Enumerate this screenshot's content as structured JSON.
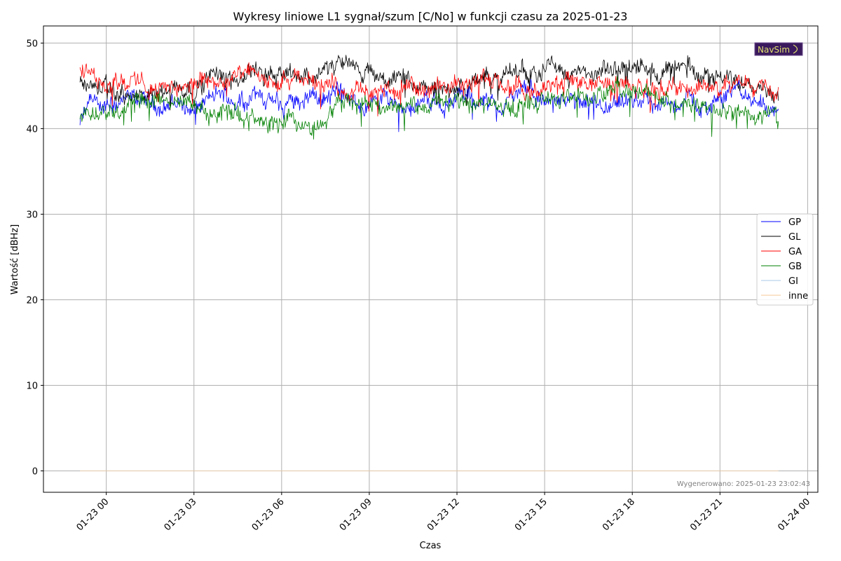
{
  "chart_data": {
    "type": "line",
    "title": "Wykresy liniowe L1 sygnał/szum [C/No] w funkcji czasu za 2025-01-23",
    "xlabel": "Czas",
    "ylabel": "Wartość [dBHz]",
    "x_ticks": [
      "01-23 00",
      "01-23 03",
      "01-23 06",
      "01-23 09",
      "01-23 12",
      "01-23 15",
      "01-23 18",
      "01-23 21",
      "01-24 00"
    ],
    "y_ticks": [
      "0",
      "10",
      "20",
      "30",
      "40",
      "50"
    ],
    "xlim_hours": [
      -2.15,
      24.35
    ],
    "ylim": [
      -2.5,
      52
    ],
    "grid": true,
    "legend_position": "center-right",
    "series": [
      {
        "name": "GP",
        "color": "#0000ff",
        "x_hours": [
          -0.9,
          -0.5,
          0,
          0.5,
          1,
          1.5,
          2,
          2.5,
          3,
          3.5,
          4,
          4.5,
          5,
          5.5,
          6,
          6.5,
          7,
          7.5,
          8,
          8.5,
          9,
          9.5,
          10,
          10.5,
          11,
          11.5,
          12,
          12.5,
          13,
          13.5,
          14,
          14.5,
          15,
          15.5,
          16,
          16.5,
          17,
          17.5,
          18,
          18.5,
          19,
          19.5,
          20,
          20.5,
          21,
          21.5,
          22,
          22.5,
          23.0
        ],
        "values": [
          40.5,
          43.5,
          42.5,
          43.0,
          43.5,
          43.0,
          42.5,
          43.2,
          42.0,
          43.5,
          44.0,
          43.0,
          44.0,
          43.5,
          42.5,
          43.5,
          44.0,
          43.5,
          44.5,
          43.0,
          42.5,
          44.0,
          43.0,
          42.5,
          43.5,
          42.5,
          44.0,
          43.5,
          43.0,
          42.5,
          44.0,
          44.5,
          43.0,
          43.5,
          43.0,
          42.5,
          42.0,
          42.5,
          43.0,
          43.5,
          42.5,
          43.0,
          43.5,
          42.0,
          44.0,
          44.5,
          43.5,
          43.0,
          42.0
        ]
      },
      {
        "name": "GL",
        "color": "#000000",
        "x_hours": [
          -0.9,
          -0.5,
          0,
          0.5,
          1,
          1.5,
          2,
          2.5,
          3,
          3.5,
          4,
          4.5,
          5,
          5.5,
          6,
          6.5,
          7,
          7.5,
          8,
          8.5,
          9,
          9.5,
          10,
          10.5,
          11,
          11.5,
          12,
          12.5,
          13,
          13.5,
          14,
          14.5,
          15,
          15.5,
          16,
          16.5,
          17,
          17.5,
          18,
          18.5,
          19,
          19.5,
          20,
          20.5,
          21,
          21.5,
          22,
          22.5,
          23.0
        ],
        "values": [
          45.5,
          45.0,
          44.5,
          44.0,
          43.5,
          43.5,
          44.5,
          45.0,
          44.5,
          46.0,
          46.5,
          46.0,
          47.0,
          46.5,
          47.0,
          46.5,
          46.0,
          47.0,
          47.5,
          47.0,
          46.5,
          45.5,
          46.0,
          45.0,
          44.5,
          45.0,
          44.5,
          45.5,
          46.0,
          45.5,
          47.0,
          46.5,
          47.5,
          47.0,
          46.5,
          46.0,
          46.5,
          47.0,
          47.5,
          47.0,
          46.5,
          47.0,
          47.0,
          46.5,
          46.0,
          45.5,
          46.0,
          45.0,
          44.0
        ]
      },
      {
        "name": "GA",
        "color": "#ff0000",
        "x_hours": [
          -0.9,
          -0.5,
          0,
          0.5,
          1,
          1.5,
          2,
          2.5,
          3,
          3.5,
          4,
          4.5,
          5,
          5.5,
          6,
          6.5,
          7,
          7.5,
          8,
          8.5,
          9,
          9.5,
          10,
          10.5,
          11,
          11.5,
          12,
          12.5,
          13,
          13.5,
          14,
          14.5,
          15,
          15.5,
          16,
          16.5,
          17,
          17.5,
          18,
          18.5,
          19,
          19.5,
          20,
          20.5,
          21,
          21.5,
          22,
          22.5,
          23.0
        ],
        "values": [
          46.5,
          46.0,
          45.5,
          45.5,
          45.5,
          45.0,
          44.5,
          45.0,
          45.0,
          45.5,
          45.5,
          46.0,
          46.5,
          45.5,
          45.0,
          45.5,
          46.0,
          45.5,
          44.5,
          44.5,
          44.0,
          44.5,
          44.5,
          44.5,
          44.5,
          45.0,
          45.5,
          46.0,
          45.5,
          45.0,
          44.5,
          44.0,
          44.5,
          45.5,
          46.0,
          45.0,
          45.5,
          45.0,
          45.0,
          44.5,
          45.0,
          44.5,
          45.0,
          45.0,
          44.5,
          45.0,
          45.5,
          45.5,
          44.5
        ]
      },
      {
        "name": "GB",
        "color": "#008000",
        "x_hours": [
          -0.9,
          -0.5,
          0,
          0.5,
          1,
          1.5,
          2,
          2.5,
          3,
          3.5,
          4,
          4.5,
          5,
          5.5,
          6,
          6.5,
          7,
          7.5,
          8,
          8.5,
          9,
          9.5,
          10,
          10.5,
          11,
          11.5,
          12,
          12.5,
          13,
          13.5,
          14,
          14.5,
          15,
          15.5,
          16,
          16.5,
          17,
          17.5,
          18,
          18.5,
          19,
          19.5,
          20,
          20.5,
          21,
          21.5,
          22,
          22.5,
          23.0
        ],
        "values": [
          41.5,
          42.0,
          42.5,
          42.5,
          43.0,
          43.0,
          43.5,
          43.0,
          42.5,
          42.0,
          42.0,
          41.5,
          41.0,
          40.5,
          41.0,
          40.5,
          40.0,
          41.0,
          43.5,
          43.5,
          43.0,
          42.5,
          43.0,
          42.5,
          43.0,
          43.0,
          43.0,
          43.5,
          43.0,
          42.5,
          42.5,
          43.0,
          43.5,
          43.5,
          44.0,
          43.5,
          44.0,
          44.5,
          44.0,
          44.0,
          43.5,
          43.0,
          43.0,
          42.5,
          42.0,
          42.0,
          41.5,
          41.5,
          41.5
        ]
      },
      {
        "name": "GI",
        "color": "#a8c8e8",
        "x_hours": [
          -0.9,
          23.0
        ],
        "values": [
          0,
          0
        ]
      },
      {
        "name": "inne",
        "color": "#f5c896",
        "x_hours": [
          -0.9,
          23.0
        ],
        "values": [
          0,
          0
        ]
      }
    ],
    "annotation": "Wygenerowano: 2025-01-23 23:02:43",
    "logo_text": "NavSim"
  }
}
